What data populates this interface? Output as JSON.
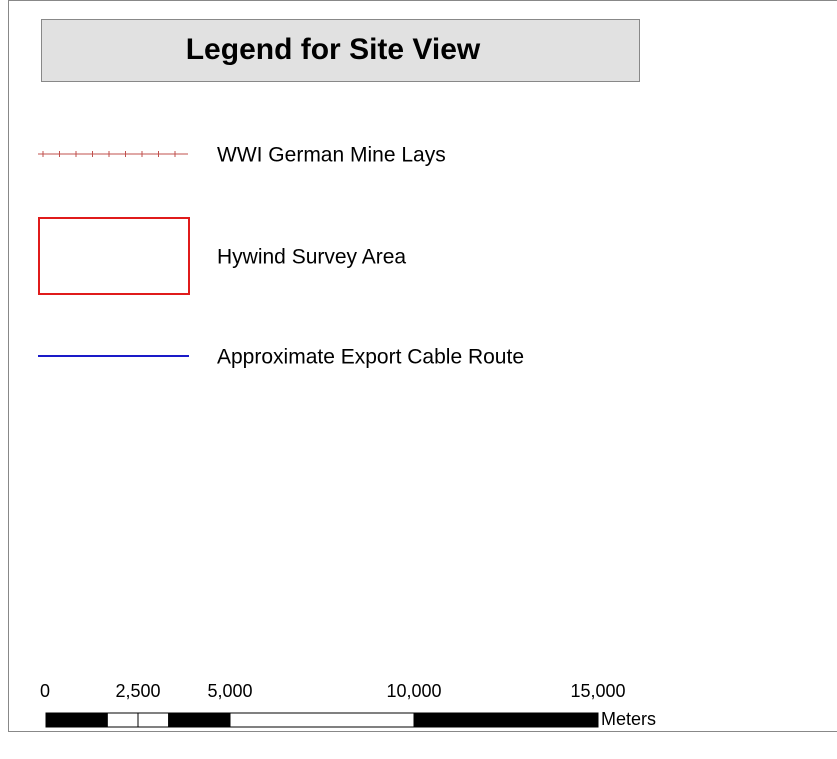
{
  "legend": {
    "title": "Legend for Site View",
    "items": [
      {
        "label": "WWI German Mine Lays",
        "symbol": "hatched-line",
        "color": "#c0504d"
      },
      {
        "label": "Hywind Survey Area",
        "symbol": "box",
        "color": "#e01b1b"
      },
      {
        "label": "Approximate Export Cable Route",
        "symbol": "line",
        "color": "#1a1ac8"
      }
    ]
  },
  "scale_bar": {
    "unit": "Meters",
    "lim": [
      0,
      15000
    ],
    "ticks": [
      0,
      {
        "value": 2500,
        "label": "2,500"
      },
      {
        "value": 5000,
        "label": "5,000"
      },
      {
        "value": 10000,
        "label": "10,000"
      },
      {
        "value": 15000,
        "label": "15,000"
      }
    ]
  }
}
